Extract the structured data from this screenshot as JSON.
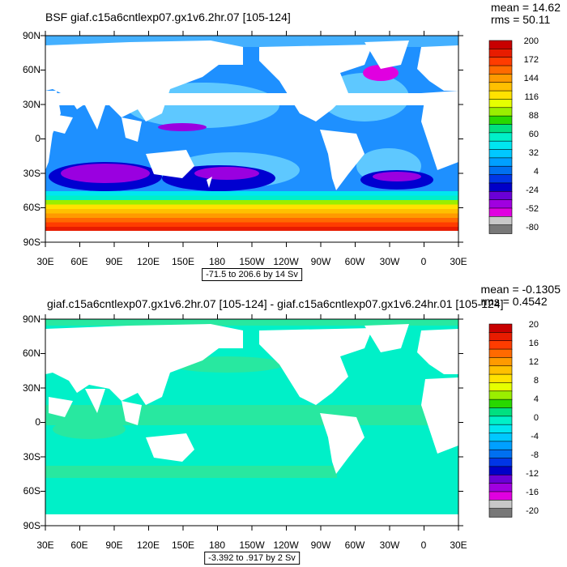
{
  "panels": [
    {
      "title": "BSF giaf.c15a6cntlexp07.gx1v6.2hr.07 [105-124]",
      "stats": {
        "mean": "mean = 14.62",
        "rms": "rms = 50.11"
      },
      "range_note": "-71.5 to 206.6 by 14 Sv",
      "lat_labels": [
        "90N",
        "60N",
        "30N",
        "0",
        "30S",
        "60S",
        "90S"
      ],
      "lon_labels": [
        "30E",
        "60E",
        "90E",
        "120E",
        "150E",
        "180",
        "150W",
        "120W",
        "90W",
        "60W",
        "30W",
        "0",
        "30E"
      ],
      "colorbar": {
        "labels": [
          "200",
          "172",
          "144",
          "116",
          "88",
          "60",
          "32",
          "4",
          "-24",
          "-52",
          "-80"
        ],
        "colors": [
          "#c80000",
          "#e81c00",
          "#ff3c00",
          "#ff6a00",
          "#ff9a00",
          "#ffc000",
          "#ffe200",
          "#e6ff00",
          "#9aee00",
          "#28d800",
          "#00e080",
          "#00f0c8",
          "#00e6f0",
          "#00c8ff",
          "#00a0ff",
          "#0070f0",
          "#0036e6",
          "#0000c8",
          "#6a00d6",
          "#a000e0",
          "#e000e0",
          "#c8c8c8",
          "#787878"
        ]
      },
      "map_colors": {
        "ocean": "#1e90ff",
        "ocean_light": "#44b0ff",
        "gyre": "#5ec8ff",
        "deep": "#0000d0",
        "purple": "#9a00e0",
        "magenta": "#e000e0",
        "land": "#ffffff",
        "acc": [
          "#00e6f0",
          "#00f0c8",
          "#9aee00",
          "#ffe200",
          "#ffc000",
          "#ff9a00",
          "#ff6a00",
          "#ff3c00",
          "#e81c00"
        ]
      }
    },
    {
      "title": "giaf.c15a6cntlexp07.gx1v6.2hr.07 [105-124] - giaf.c15a6cntlexp07.gx1v6.24hr.01 [105-124]",
      "stats": {
        "mean": "mean = -0.1305",
        "rms": "rms = 0.4542"
      },
      "range_note": "-3.392 to .917 by 2 Sv",
      "lat_labels": [
        "90N",
        "60N",
        "30N",
        "0",
        "30S",
        "60S",
        "90S"
      ],
      "lon_labels": [
        "30E",
        "60E",
        "90E",
        "120E",
        "150E",
        "180",
        "150W",
        "120W",
        "90W",
        "60W",
        "30W",
        "0",
        "30E"
      ],
      "colorbar": {
        "labels": [
          "20",
          "16",
          "12",
          "8",
          "4",
          "0",
          "-4",
          "-8",
          "-12",
          "-16",
          "-20"
        ],
        "colors": [
          "#c80000",
          "#e81c00",
          "#ff3c00",
          "#ff6a00",
          "#ff9a00",
          "#ffc000",
          "#ffe200",
          "#e6ff00",
          "#9aee00",
          "#28d800",
          "#00e080",
          "#00f0c8",
          "#00e6f0",
          "#00c8ff",
          "#00a0ff",
          "#0070f0",
          "#0036e6",
          "#0000c8",
          "#6a00d6",
          "#a000e0",
          "#e000e0",
          "#c8c8c8",
          "#787878"
        ]
      },
      "map_colors": {
        "ocean": "#00f0c8",
        "ocean_alt": "#28e8a0",
        "land": "#ffffff"
      }
    }
  ]
}
